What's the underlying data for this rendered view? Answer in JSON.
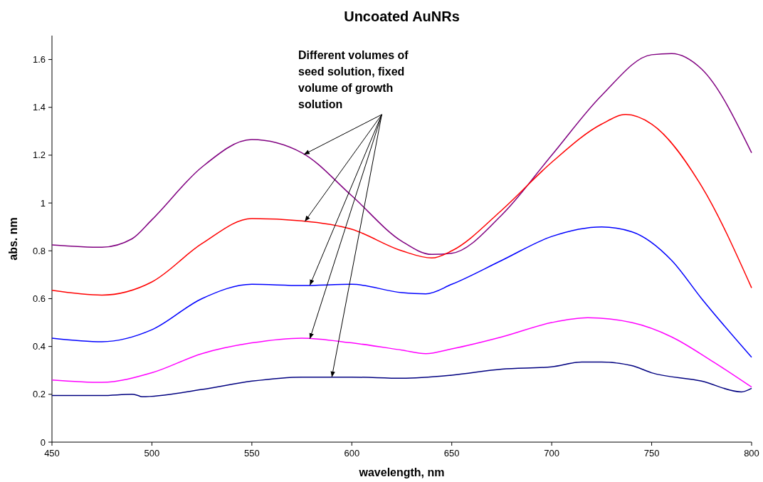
{
  "chart_data": {
    "type": "line",
    "title": "Uncoated AuNRs",
    "xlabel": "wavelength, nm",
    "ylabel": "abs. nm",
    "xlim": [
      450,
      800
    ],
    "xticks": [
      450,
      500,
      550,
      600,
      650,
      700,
      750,
      800
    ],
    "ylim": [
      0,
      1.7
    ],
    "yticks": [
      0,
      0.2,
      0.4,
      0.6,
      0.8,
      1,
      1.2,
      1.4,
      1.6
    ],
    "grid": false,
    "annotations": [
      "Different volumes of seed solution, fixed volume of growth solution"
    ],
    "series": [
      {
        "color": "#800080",
        "x": [
          450,
          475,
          490,
          500,
          525,
          550,
          575,
          600,
          625,
          640,
          650,
          675,
          700,
          725,
          750,
          760,
          775,
          800
        ],
        "values": [
          0.825,
          0.815,
          0.85,
          0.93,
          1.15,
          1.265,
          1.21,
          1.03,
          0.84,
          0.785,
          0.79,
          0.95,
          1.2,
          1.45,
          1.62,
          1.625,
          1.56,
          1.21
        ]
      },
      {
        "color": "#ff0000",
        "x": [
          450,
          475,
          500,
          525,
          550,
          575,
          600,
          625,
          640,
          650,
          675,
          700,
          725,
          737,
          750,
          775,
          800
        ],
        "values": [
          0.635,
          0.615,
          0.67,
          0.83,
          0.935,
          0.925,
          0.89,
          0.8,
          0.77,
          0.8,
          0.97,
          1.17,
          1.33,
          1.37,
          1.33,
          1.07,
          0.645
        ]
      },
      {
        "color": "#0000ff",
        "x": [
          450,
          475,
          500,
          525,
          550,
          575,
          600,
          625,
          637,
          650,
          675,
          700,
          725,
          740,
          760,
          775,
          800
        ],
        "values": [
          0.435,
          0.42,
          0.47,
          0.6,
          0.66,
          0.655,
          0.66,
          0.625,
          0.62,
          0.66,
          0.76,
          0.86,
          0.9,
          0.88,
          0.76,
          0.6,
          0.355
        ]
      },
      {
        "color": "#ff00ff",
        "x": [
          450,
          475,
          500,
          525,
          550,
          575,
          600,
          625,
          637,
          650,
          675,
          700,
          718,
          740,
          760,
          780,
          800
        ],
        "values": [
          0.26,
          0.25,
          0.29,
          0.37,
          0.415,
          0.435,
          0.415,
          0.385,
          0.37,
          0.39,
          0.44,
          0.5,
          0.52,
          0.5,
          0.44,
          0.34,
          0.23
        ]
      },
      {
        "color": "#000080",
        "x": [
          450,
          475,
          490,
          493,
          495,
          525,
          550,
          575,
          600,
          625,
          650,
          675,
          700,
          715,
          725,
          740,
          750,
          775,
          795,
          800
        ],
        "values": [
          0.195,
          0.195,
          0.2,
          0.195,
          0.19,
          0.22,
          0.255,
          0.272,
          0.272,
          0.267,
          0.28,
          0.305,
          0.315,
          0.335,
          0.335,
          0.32,
          0.29,
          0.255,
          0.21,
          0.225
        ]
      }
    ]
  }
}
